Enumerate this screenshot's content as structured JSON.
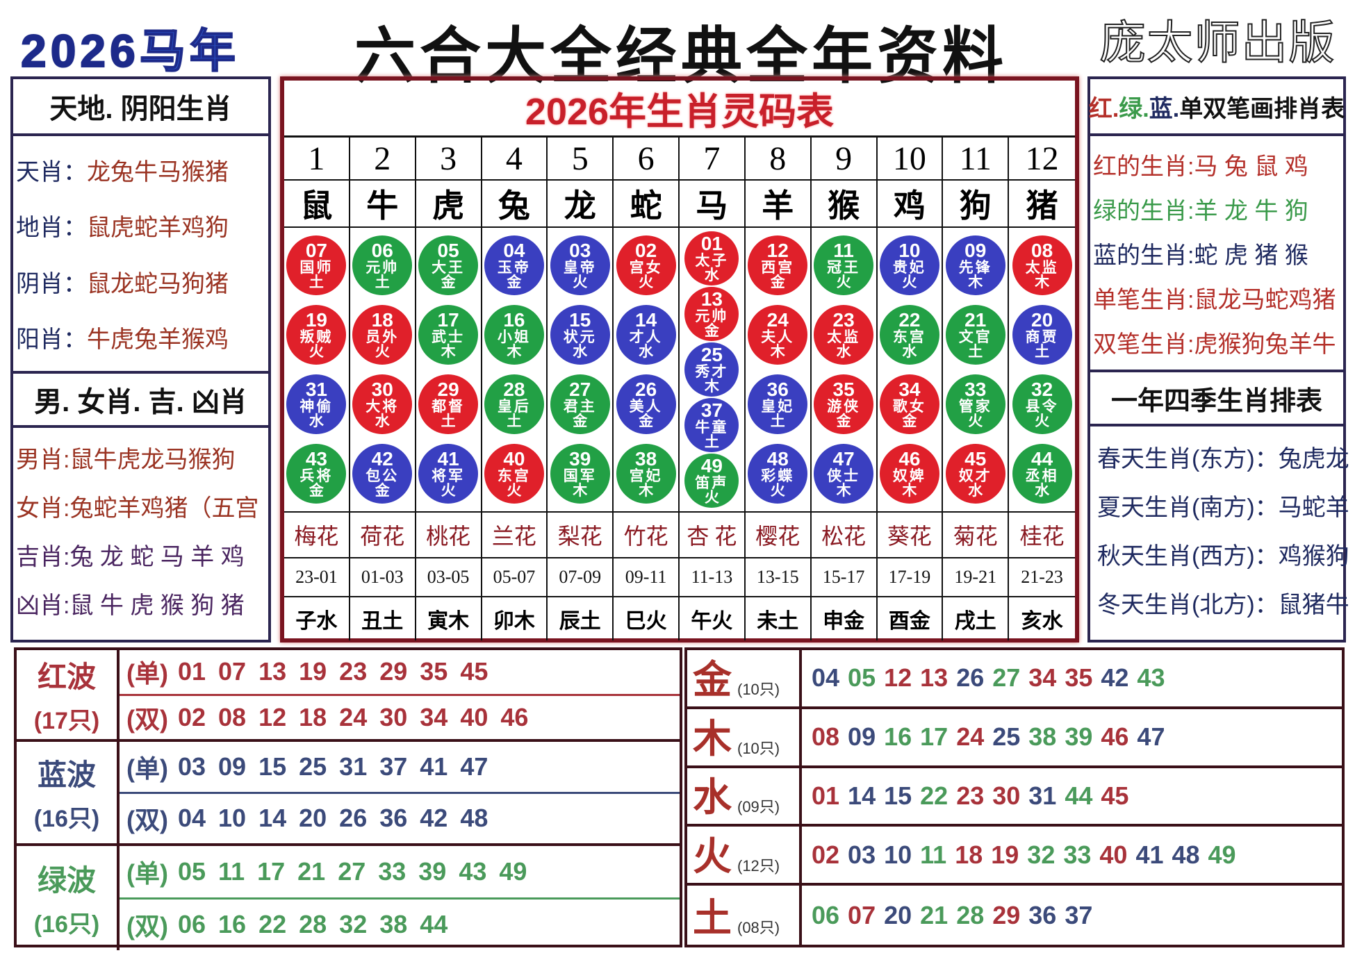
{
  "header": {
    "year": "2026",
    "year_suffix": "马年",
    "title": "六合大全经典全年资料",
    "publisher": "庞太师出版"
  },
  "colors": {
    "red": "#e0202a",
    "green": "#22a045",
    "blue": "#3a3fc0",
    "red_text": "#a8323a",
    "green_text": "#4a9a5a",
    "blue_text": "#3b4a7a"
  },
  "left_panel": {
    "section1_title": "天地. 阴阳生肖",
    "section1_rows": [
      {
        "label": "天肖：",
        "value": "龙兔牛马猴猪"
      },
      {
        "label": "地肖：",
        "value": "鼠虎蛇羊鸡狗"
      },
      {
        "label": "阴肖：",
        "value": "鼠龙蛇马狗猪"
      },
      {
        "label": "阳肖：",
        "value": "牛虎兔羊猴鸡"
      }
    ],
    "section2_title": "男. 女肖. 吉. 凶肖",
    "section2_rows": [
      {
        "label": "男肖:",
        "value": "鼠牛虎龙马猴狗"
      },
      {
        "label": "女肖:",
        "value": "兔蛇羊鸡猪（五宫"
      },
      {
        "label": "吉肖:",
        "value": "兔 龙 蛇 马 羊 鸡"
      },
      {
        "label": "凶肖:",
        "value": "鼠 牛 虎 猴 狗 猪"
      }
    ]
  },
  "center_table": {
    "title": "2026年生肖灵码表",
    "columns": [
      {
        "num": "1",
        "zodiac": "鼠",
        "flower": "梅花",
        "time": "23-01",
        "branch": "子水",
        "balls": [
          {
            "n": "07",
            "t": "国师",
            "e": "土"
          },
          {
            "n": "19",
            "t": "叛贼",
            "e": "火"
          },
          {
            "n": "31",
            "t": "神偷",
            "e": "水"
          },
          {
            "n": "43",
            "t": "兵将",
            "e": "金"
          }
        ]
      },
      {
        "num": "2",
        "zodiac": "牛",
        "flower": "荷花",
        "time": "01-03",
        "branch": "丑土",
        "balls": [
          {
            "n": "06",
            "t": "元帅",
            "e": "土"
          },
          {
            "n": "18",
            "t": "员外",
            "e": "火"
          },
          {
            "n": "30",
            "t": "大将",
            "e": "水"
          },
          {
            "n": "42",
            "t": "包公",
            "e": "金"
          }
        ]
      },
      {
        "num": "3",
        "zodiac": "虎",
        "flower": "桃花",
        "time": "03-05",
        "branch": "寅木",
        "balls": [
          {
            "n": "05",
            "t": "大王",
            "e": "金"
          },
          {
            "n": "17",
            "t": "武士",
            "e": "木"
          },
          {
            "n": "29",
            "t": "都督",
            "e": "土"
          },
          {
            "n": "41",
            "t": "将军",
            "e": "火"
          }
        ]
      },
      {
        "num": "4",
        "zodiac": "兔",
        "flower": "兰花",
        "time": "05-07",
        "branch": "卯木",
        "balls": [
          {
            "n": "04",
            "t": "玉帝",
            "e": "金"
          },
          {
            "n": "16",
            "t": "小姐",
            "e": "木"
          },
          {
            "n": "28",
            "t": "皇后",
            "e": "土"
          },
          {
            "n": "40",
            "t": "东宫",
            "e": "火"
          }
        ]
      },
      {
        "num": "5",
        "zodiac": "龙",
        "flower": "梨花",
        "time": "07-09",
        "branch": "辰土",
        "balls": [
          {
            "n": "03",
            "t": "皇帝",
            "e": "火"
          },
          {
            "n": "15",
            "t": "状元",
            "e": "水"
          },
          {
            "n": "27",
            "t": "君主",
            "e": "金"
          },
          {
            "n": "39",
            "t": "国军",
            "e": "木"
          }
        ]
      },
      {
        "num": "6",
        "zodiac": "蛇",
        "flower": "竹花",
        "time": "09-11",
        "branch": "巳火",
        "balls": [
          {
            "n": "02",
            "t": "宫女",
            "e": "火"
          },
          {
            "n": "14",
            "t": "才人",
            "e": "水"
          },
          {
            "n": "26",
            "t": "美人",
            "e": "金"
          },
          {
            "n": "38",
            "t": "宫妃",
            "e": "木"
          }
        ]
      },
      {
        "num": "7",
        "zodiac": "马",
        "flower": "杏 花",
        "time": "11-13",
        "branch": "午火",
        "balls": [
          {
            "n": "01",
            "t": "太子",
            "e": "水"
          },
          {
            "n": "13",
            "t": "元帅",
            "e": "金"
          },
          {
            "n": "25",
            "t": "秀才",
            "e": "木"
          },
          {
            "n": "37",
            "t": "牛童",
            "e": "土"
          },
          {
            "n": "49",
            "t": "笛声",
            "e": "火"
          }
        ]
      },
      {
        "num": "8",
        "zodiac": "羊",
        "flower": "樱花",
        "time": "13-15",
        "branch": "未土",
        "balls": [
          {
            "n": "12",
            "t": "西宫",
            "e": "金"
          },
          {
            "n": "24",
            "t": "夫人",
            "e": "木"
          },
          {
            "n": "36",
            "t": "皇妃",
            "e": "土"
          },
          {
            "n": "48",
            "t": "彩蝶",
            "e": "火"
          }
        ]
      },
      {
        "num": "9",
        "zodiac": "猴",
        "flower": "松花",
        "time": "15-17",
        "branch": "申金",
        "balls": [
          {
            "n": "11",
            "t": "冠王",
            "e": "火"
          },
          {
            "n": "23",
            "t": "太监",
            "e": "水"
          },
          {
            "n": "35",
            "t": "游侠",
            "e": "金"
          },
          {
            "n": "47",
            "t": "侠士",
            "e": "木"
          }
        ]
      },
      {
        "num": "10",
        "zodiac": "鸡",
        "flower": "葵花",
        "time": "17-19",
        "branch": "酉金",
        "balls": [
          {
            "n": "10",
            "t": "贵妃",
            "e": "火"
          },
          {
            "n": "22",
            "t": "东宫",
            "e": "水"
          },
          {
            "n": "34",
            "t": "歌女",
            "e": "金"
          },
          {
            "n": "46",
            "t": "奴婢",
            "e": "木"
          }
        ]
      },
      {
        "num": "11",
        "zodiac": "狗",
        "flower": "菊花",
        "time": "19-21",
        "branch": "戌土",
        "balls": [
          {
            "n": "09",
            "t": "先锋",
            "e": "木"
          },
          {
            "n": "21",
            "t": "文官",
            "e": "土"
          },
          {
            "n": "33",
            "t": "管家",
            "e": "火"
          },
          {
            "n": "45",
            "t": "奴才",
            "e": "水"
          }
        ]
      },
      {
        "num": "12",
        "zodiac": "猪",
        "flower": "桂花",
        "time": "21-23",
        "branch": "亥水",
        "balls": [
          {
            "n": "08",
            "t": "太监",
            "e": "木"
          },
          {
            "n": "20",
            "t": "商贾",
            "e": "土"
          },
          {
            "n": "32",
            "t": "县令",
            "e": "火"
          },
          {
            "n": "44",
            "t": "丞相",
            "e": "水"
          }
        ]
      }
    ]
  },
  "right_panel": {
    "section1_title_parts": [
      {
        "text": "红.",
        "color": "red"
      },
      {
        "text": "绿.",
        "color": "green"
      },
      {
        "text": "蓝.",
        "color": "navy"
      },
      {
        "text": "单双笔画排肖表",
        "color": "black"
      }
    ],
    "section1_rows": [
      {
        "label": "红的生肖:",
        "value": "马 兔 鼠 鸡",
        "color": "red"
      },
      {
        "label": "绿的生肖:",
        "value": "羊 龙 牛 狗",
        "color": "green"
      },
      {
        "label": "蓝的生肖:",
        "value": "蛇 虎 猪 猴",
        "color": "navy"
      },
      {
        "label": "单笔生肖:",
        "value": "鼠龙马蛇鸡猪",
        "color": "red"
      },
      {
        "label": "双笔生肖:",
        "value": "虎猴狗兔羊牛",
        "color": "red"
      }
    ],
    "section2_title": "一年四季生肖排表",
    "section2_rows": [
      {
        "label": "春天生肖(东方)：",
        "value": "兔虎龙"
      },
      {
        "label": "夏天生肖(南方)：",
        "value": "马蛇羊"
      },
      {
        "label": "秋天生肖(西方)：",
        "value": "鸡猴狗"
      },
      {
        "label": "冬天生肖(北方)：",
        "value": "鼠猪牛"
      }
    ]
  },
  "waves": [
    {
      "name": "红波",
      "count": "(17只)",
      "color": "red",
      "odd_tag": "(单)",
      "odd": [
        "01",
        "07",
        "13",
        "19",
        "23",
        "29",
        "35",
        "45"
      ],
      "even_tag": "(双)",
      "even": [
        "02",
        "08",
        "12",
        "18",
        "24",
        "30",
        "34",
        "40",
        "46"
      ]
    },
    {
      "name": "蓝波",
      "count": "(16只)",
      "color": "blue",
      "odd_tag": "(单)",
      "odd": [
        "03",
        "09",
        "15",
        "25",
        "31",
        "37",
        "41",
        "47"
      ],
      "even_tag": "(双)",
      "even": [
        "04",
        "10",
        "14",
        "20",
        "26",
        "36",
        "42",
        "48"
      ]
    },
    {
      "name": "绿波",
      "count": "(16只)",
      "color": "green",
      "odd_tag": "(单)",
      "odd": [
        "05",
        "11",
        "17",
        "21",
        "27",
        "33",
        "39",
        "43",
        "49"
      ],
      "even_tag": "(双)",
      "even": [
        "06",
        "16",
        "22",
        "28",
        "32",
        "38",
        "44"
      ]
    }
  ],
  "elements": [
    {
      "name": "金",
      "count": "(10只)",
      "numbers": [
        "04",
        "05",
        "12",
        "13",
        "26",
        "27",
        "34",
        "35",
        "42",
        "43"
      ]
    },
    {
      "name": "木",
      "count": "(10只)",
      "numbers": [
        "08",
        "09",
        "16",
        "17",
        "24",
        "25",
        "38",
        "39",
        "46",
        "47"
      ]
    },
    {
      "name": "水",
      "count": "(09只)",
      "numbers": [
        "01",
        "14",
        "15",
        "22",
        "23",
        "30",
        "31",
        "44",
        "45"
      ]
    },
    {
      "name": "火",
      "count": "(12只)",
      "numbers": [
        "02",
        "03",
        "10",
        "11",
        "18",
        "19",
        "32",
        "33",
        "40",
        "41",
        "48",
        "49"
      ]
    },
    {
      "name": "土",
      "count": "(08只)",
      "numbers": [
        "06",
        "07",
        "20",
        "21",
        "28",
        "29",
        "36",
        "37"
      ]
    }
  ]
}
